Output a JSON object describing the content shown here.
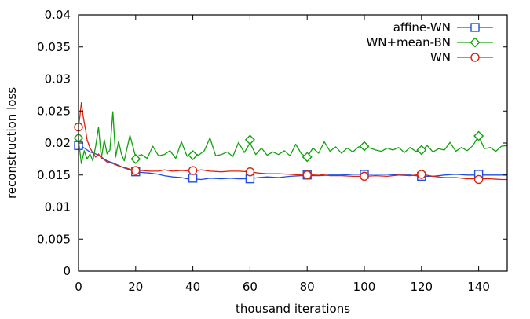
{
  "chart_data": {
    "type": "line",
    "title": "",
    "xlabel": "thousand iterations",
    "ylabel": "reconstruction loss",
    "xlim": [
      0,
      150
    ],
    "ylim": [
      0,
      0.04
    ],
    "x_ticks": [
      0,
      20,
      40,
      60,
      80,
      100,
      120,
      140
    ],
    "x_tick_labels": [
      "0",
      "20",
      "40",
      "60",
      "80",
      "100",
      "120",
      "140"
    ],
    "y_ticks": [
      0,
      0.005,
      0.01,
      0.015,
      0.02,
      0.025,
      0.03,
      0.035,
      0.04
    ],
    "y_tick_labels": [
      "0",
      "0.005",
      "0.01",
      "0.015",
      "0.02",
      "0.025",
      "0.03",
      "0.035",
      "0.04"
    ],
    "grid": false,
    "legend_position": "top-right",
    "series": [
      {
        "name": "affine-WN",
        "color": "#1f4fe0",
        "marker": "square",
        "x": [
          0,
          2,
          4,
          6,
          8,
          10,
          12,
          14,
          16,
          18,
          20,
          22,
          25,
          28,
          30,
          33,
          36,
          38,
          40,
          43,
          46,
          50,
          53,
          56,
          60,
          63,
          66,
          70,
          74,
          78,
          80,
          84,
          88,
          92,
          96,
          100,
          104,
          108,
          112,
          116,
          120,
          124,
          128,
          132,
          136,
          140,
          144,
          148,
          150
        ],
        "y": [
          0.0198,
          0.0192,
          0.0186,
          0.0183,
          0.0178,
          0.0172,
          0.0169,
          0.0165,
          0.0161,
          0.0158,
          0.0155,
          0.0154,
          0.0153,
          0.0151,
          0.0149,
          0.0147,
          0.0146,
          0.0144,
          0.0144,
          0.0143,
          0.0145,
          0.0144,
          0.0145,
          0.0144,
          0.0144,
          0.0146,
          0.0147,
          0.0146,
          0.0148,
          0.0149,
          0.0149,
          0.0149,
          0.015,
          0.015,
          0.0151,
          0.0151,
          0.0151,
          0.0151,
          0.015,
          0.015,
          0.0148,
          0.0148,
          0.015,
          0.0151,
          0.015,
          0.015,
          0.015,
          0.015,
          0.015
        ],
        "marker_x": [
          0,
          20,
          40,
          60,
          80,
          100,
          120,
          140
        ],
        "marker_y": [
          0.0196,
          0.0155,
          0.0145,
          0.0144,
          0.015,
          0.0151,
          0.0148,
          0.0151
        ]
      },
      {
        "name": "WN+mean-BN",
        "color": "#11a30e",
        "marker": "diamond",
        "x": [
          0,
          1,
          2,
          3,
          4,
          5,
          6,
          7,
          8,
          9,
          10,
          11,
          12,
          13,
          14,
          15,
          16,
          18,
          20,
          22,
          24,
          26,
          28,
          30,
          32,
          34,
          36,
          38,
          40,
          42,
          44,
          46,
          48,
          50,
          52,
          54,
          56,
          58,
          60,
          62,
          64,
          66,
          68,
          70,
          72,
          74,
          76,
          78,
          80,
          82,
          84,
          86,
          88,
          90,
          92,
          94,
          96,
          98,
          100,
          102,
          104,
          106,
          108,
          110,
          112,
          114,
          116,
          118,
          120,
          122,
          124,
          126,
          128,
          130,
          132,
          134,
          136,
          138,
          140,
          142,
          144,
          146,
          148,
          150
        ],
        "y": [
          0.0205,
          0.0168,
          0.0188,
          0.0175,
          0.0183,
          0.0172,
          0.0195,
          0.0225,
          0.0176,
          0.0205,
          0.0183,
          0.0189,
          0.0249,
          0.0178,
          0.0203,
          0.0183,
          0.0172,
          0.0212,
          0.0178,
          0.0182,
          0.0176,
          0.0195,
          0.018,
          0.0182,
          0.0188,
          0.0176,
          0.0202,
          0.0179,
          0.0185,
          0.0181,
          0.0188,
          0.0208,
          0.018,
          0.0182,
          0.0186,
          0.0179,
          0.0201,
          0.0185,
          0.02,
          0.0182,
          0.0192,
          0.0181,
          0.0186,
          0.0182,
          0.0188,
          0.018,
          0.0198,
          0.0183,
          0.0178,
          0.0192,
          0.0184,
          0.0202,
          0.0187,
          0.0194,
          0.0184,
          0.0192,
          0.0186,
          0.0194,
          0.0193,
          0.0192,
          0.0189,
          0.0187,
          0.0192,
          0.0189,
          0.0193,
          0.0185,
          0.0193,
          0.0187,
          0.0188,
          0.0196,
          0.0186,
          0.0191,
          0.0189,
          0.0201,
          0.0187,
          0.0193,
          0.0188,
          0.0196,
          0.0211,
          0.0191,
          0.0193,
          0.0187,
          0.0195,
          0.0196
        ],
        "marker_x": [
          0,
          20,
          40,
          60,
          80,
          100,
          120,
          140
        ],
        "marker_y": [
          0.0208,
          0.0175,
          0.0181,
          0.0205,
          0.0178,
          0.0195,
          0.0189,
          0.0211
        ]
      },
      {
        "name": "WN",
        "color": "#d9230f",
        "marker": "circle",
        "x": [
          0,
          0.5,
          1,
          1.5,
          2,
          2.5,
          3,
          4,
          5,
          6,
          7,
          8,
          9,
          10,
          12,
          14,
          16,
          18,
          20,
          22,
          25,
          28,
          30,
          33,
          36,
          40,
          43,
          46,
          50,
          53,
          56,
          60,
          63,
          66,
          70,
          74,
          78,
          80,
          84,
          88,
          92,
          96,
          100,
          104,
          108,
          112,
          116,
          120,
          124,
          128,
          132,
          136,
          140,
          144,
          148,
          150
        ],
        "y": [
          0.0225,
          0.0242,
          0.0263,
          0.0245,
          0.0232,
          0.022,
          0.0205,
          0.0192,
          0.0185,
          0.0178,
          0.0183,
          0.0176,
          0.0174,
          0.017,
          0.0168,
          0.0164,
          0.0162,
          0.0159,
          0.0157,
          0.0157,
          0.0156,
          0.0156,
          0.0158,
          0.0156,
          0.0157,
          0.0156,
          0.0158,
          0.0156,
          0.0155,
          0.0156,
          0.0156,
          0.0155,
          0.0153,
          0.0152,
          0.0152,
          0.0151,
          0.015,
          0.015,
          0.0151,
          0.0149,
          0.0149,
          0.0148,
          0.0148,
          0.0149,
          0.0148,
          0.015,
          0.0149,
          0.0151,
          0.0148,
          0.0146,
          0.0146,
          0.0144,
          0.0144,
          0.0144,
          0.0143,
          0.0143
        ],
        "marker_x": [
          0,
          20,
          40,
          60,
          80,
          100,
          120,
          140
        ],
        "marker_y": [
          0.0225,
          0.0157,
          0.0157,
          0.0155,
          0.015,
          0.0148,
          0.0151,
          0.0143
        ]
      }
    ]
  }
}
